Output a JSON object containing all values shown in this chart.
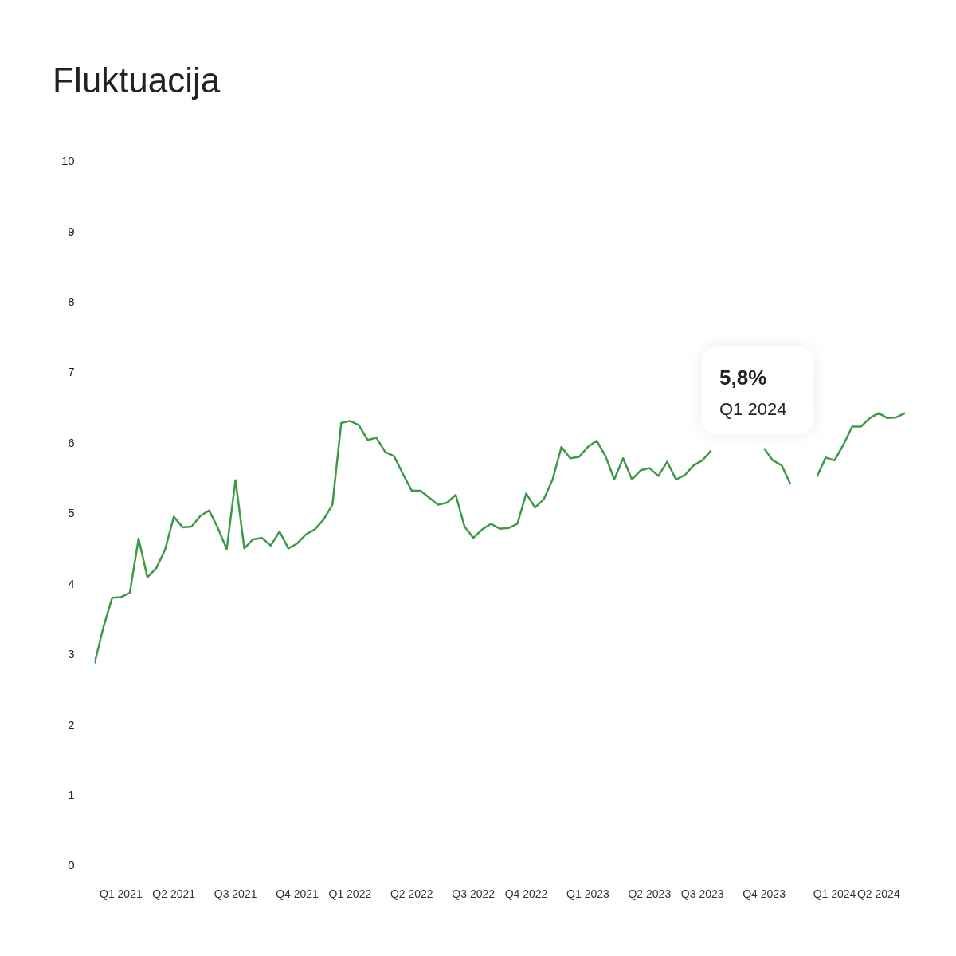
{
  "chart_data": {
    "type": "line",
    "title": "Fluktuacija",
    "categories": [
      null,
      null,
      null,
      "Q1 2021",
      null,
      null,
      null,
      null,
      null,
      "Q2 2021",
      null,
      null,
      null,
      null,
      null,
      null,
      "Q3 2021",
      null,
      null,
      null,
      null,
      null,
      null,
      "Q4 2021",
      null,
      null,
      null,
      null,
      null,
      "Q1 2022",
      null,
      null,
      null,
      null,
      null,
      null,
      "Q2 2022",
      null,
      null,
      null,
      null,
      null,
      null,
      "Q3 2022",
      null,
      null,
      null,
      null,
      null,
      "Q4 2022",
      null,
      null,
      null,
      null,
      null,
      null,
      "Q1 2023",
      null,
      null,
      null,
      null,
      null,
      null,
      "Q2 2023",
      null,
      null,
      null,
      null,
      null,
      "Q3 2023",
      null,
      null,
      null,
      null,
      null,
      null,
      "Q4 2023",
      null,
      null,
      null,
      null,
      null,
      null,
      null,
      "Q1 2024",
      null,
      null,
      null,
      null,
      "Q2 2024",
      null,
      null,
      null
    ],
    "series": [
      {
        "color": "#3c9a46",
        "values": [
          2.88,
          3.39,
          3.81,
          3.82,
          3.88,
          4.65,
          4.1,
          4.23,
          4.49,
          4.96,
          4.81,
          4.82,
          4.97,
          5.05,
          4.8,
          4.5,
          5.48,
          4.51,
          4.64,
          4.66,
          4.55,
          4.75,
          4.51,
          4.58,
          4.71,
          4.78,
          4.92,
          5.13,
          6.29,
          6.32,
          6.26,
          6.05,
          6.08,
          5.88,
          5.82,
          5.57,
          5.33,
          5.33,
          5.23,
          5.13,
          5.16,
          5.27,
          4.82,
          4.66,
          4.78,
          4.86,
          4.79,
          4.8,
          4.86,
          5.29,
          5.09,
          5.21,
          5.49,
          5.95,
          5.79,
          5.81,
          5.95,
          6.04,
          5.82,
          5.49,
          5.79,
          5.49,
          5.62,
          5.65,
          5.54,
          5.74,
          5.49,
          5.55,
          5.69,
          5.76,
          5.9,
          null,
          null,
          null,
          null,
          null,
          5.93,
          5.76,
          5.69,
          5.42,
          null,
          null,
          5.53,
          5.8,
          5.76,
          5.98,
          6.24,
          6.24,
          6.36,
          6.43,
          6.36,
          6.37,
          6.43
        ]
      }
    ],
    "ylim": [
      0,
      10
    ],
    "yticks": [
      0,
      1,
      2,
      3,
      4,
      5,
      6,
      7,
      8,
      9,
      10
    ],
    "grid": false,
    "legend": false,
    "marker": "none",
    "line_style": "solid",
    "annotations": [
      "5,8%",
      "Q1 2024"
    ]
  }
}
